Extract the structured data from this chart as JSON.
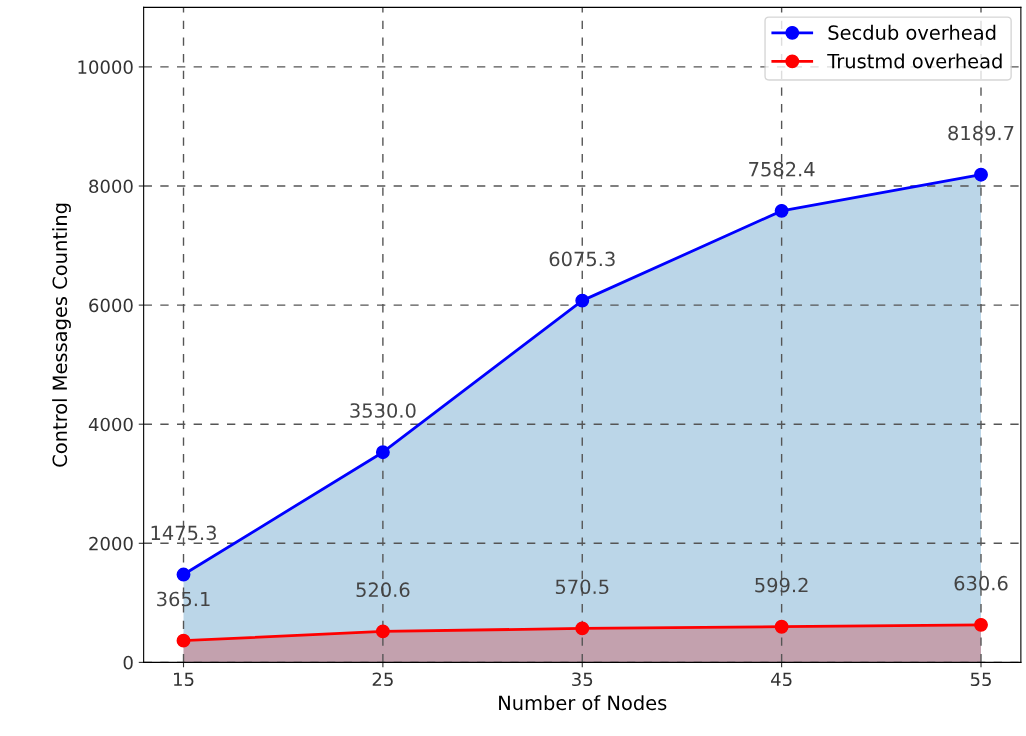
{
  "chart_data": {
    "type": "area",
    "xlabel": "Number of Nodes",
    "ylabel": "Control Messages Counting",
    "x": [
      15,
      25,
      35,
      45,
      55
    ],
    "series": [
      {
        "name": "Secdub overhead",
        "color": "#0000ff",
        "values": [
          1475.3,
          3530,
          6075.3,
          7582.4,
          8189.7
        ],
        "value_labels": [
          "1475.3",
          "3530.0",
          "6075.3",
          "7582.4",
          "8189.7"
        ]
      },
      {
        "name": "Trustmd overhead",
        "color": "#ff0000",
        "values": [
          365.1,
          520.6,
          570.5,
          599.2,
          630.6
        ],
        "value_labels": [
          "365.1",
          "520.6",
          "570.5",
          "599.2",
          "630.6"
        ]
      }
    ],
    "xlim": [
      13,
      57
    ],
    "xticks": [
      15,
      25,
      35,
      45,
      55
    ],
    "ylim": [
      0,
      11000
    ],
    "yticks": [
      0,
      2000,
      4000,
      6000,
      8000,
      10000
    ],
    "grid": true,
    "legend": "top right",
    "marker": "circle",
    "line_style": "solid"
  }
}
